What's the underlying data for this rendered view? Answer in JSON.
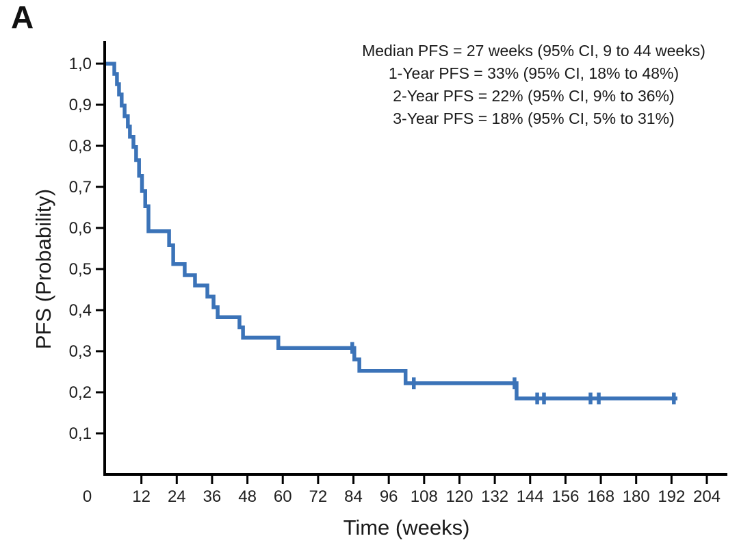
{
  "panel_label": "A",
  "colors": {
    "curve": "#3B73B8",
    "axis": "#000000",
    "text": "#1A1A1A"
  },
  "chart_data": {
    "type": "line",
    "subtype": "kaplan_meier_step",
    "title": "",
    "x_label": "Time (weeks)",
    "y_label": "PFS (Probability)",
    "xlim": [
      0,
      204
    ],
    "ylim": [
      0,
      1.0
    ],
    "grid": false,
    "legend": "none",
    "x_ticks": [
      {
        "week": 0,
        "label": "0"
      },
      {
        "week": 12,
        "label": "12"
      },
      {
        "week": 24,
        "label": "24"
      },
      {
        "week": 36,
        "label": "36"
      },
      {
        "week": 48,
        "label": "48"
      },
      {
        "week": 60,
        "label": "60"
      },
      {
        "week": 72,
        "label": "72"
      },
      {
        "week": 84,
        "label": "84"
      },
      {
        "week": 96,
        "label": "96"
      },
      {
        "week": 108,
        "label": "108"
      },
      {
        "week": 120,
        "label": "120"
      },
      {
        "week": 132,
        "label": "132"
      },
      {
        "week": 144,
        "label": "144"
      },
      {
        "week": 156,
        "label": "156"
      },
      {
        "week": 168,
        "label": "168"
      },
      {
        "week": 180,
        "label": "180"
      },
      {
        "week": 192,
        "label": "192"
      },
      {
        "week": 204,
        "label": "204"
      }
    ],
    "y_ticks": [
      {
        "value": 1.0,
        "label": "1,0"
      },
      {
        "value": 0.9,
        "label": "0,9"
      },
      {
        "value": 0.8,
        "label": "0,8"
      },
      {
        "value": 0.7,
        "label": "0,7"
      },
      {
        "value": 0.6,
        "label": "0,6"
      },
      {
        "value": 0.5,
        "label": "0,5"
      },
      {
        "value": 0.4,
        "label": "0,4"
      },
      {
        "value": 0.3,
        "label": "0,3"
      },
      {
        "value": 0.2,
        "label": "0,2"
      },
      {
        "value": 0.1,
        "label": "0,1"
      }
    ],
    "series": [
      {
        "name": "PFS",
        "color": "#3B73B8",
        "steps": [
          [
            0,
            1.0
          ],
          [
            2.8,
            0.975
          ],
          [
            3.7,
            0.95
          ],
          [
            4.4,
            0.925
          ],
          [
            5.3,
            0.898
          ],
          [
            6.3,
            0.872
          ],
          [
            7.4,
            0.847
          ],
          [
            8.1,
            0.822
          ],
          [
            9.3,
            0.797
          ],
          [
            10.2,
            0.765
          ],
          [
            11.2,
            0.727
          ],
          [
            12.2,
            0.69
          ],
          [
            13.3,
            0.653
          ],
          [
            14.4,
            0.592
          ],
          [
            21.4,
            0.558
          ],
          [
            22.8,
            0.512
          ],
          [
            26.7,
            0.485
          ],
          [
            30.2,
            0.46
          ],
          [
            34.4,
            0.433
          ],
          [
            36.5,
            0.407
          ],
          [
            37.9,
            0.383
          ],
          [
            45.3,
            0.358
          ],
          [
            46.5,
            0.333
          ],
          [
            58.5,
            0.308
          ],
          [
            84.3,
            0.28
          ],
          [
            86,
            0.252
          ],
          [
            101.7,
            0.222
          ],
          [
            139.4,
            0.185
          ]
        ],
        "end_week": 194,
        "censor_marks": [
          [
            83.6,
            0.308
          ],
          [
            104.5,
            0.222
          ],
          [
            138.7,
            0.222
          ],
          [
            146.4,
            0.185
          ],
          [
            148.7,
            0.185
          ],
          [
            164.5,
            0.185
          ],
          [
            167.3,
            0.185
          ],
          [
            192.8,
            0.185
          ]
        ]
      }
    ],
    "annotation_lines": [
      "Median PFS = 27 weeks (95% CI, 9 to 44 weeks)",
      "1-Year PFS = 33% (95% CI, 18% to 48%)",
      "2-Year PFS = 22% (95% CI, 9% to 36%)",
      "3-Year PFS = 18% (95% CI, 5% to 31%)"
    ]
  }
}
